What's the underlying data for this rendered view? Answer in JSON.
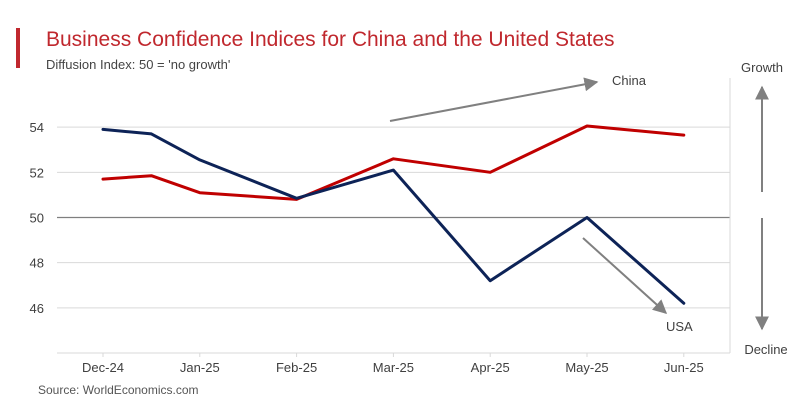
{
  "header": {
    "title": "Business Confidence Indices for China and the United States",
    "subtitle": "Diffusion Index: 50 = 'no growth'"
  },
  "footer": {
    "source": "Source: WorldEconomics.com"
  },
  "colors": {
    "title": "#c0282e",
    "accent_bar": "#c0282e",
    "china": "#c00000",
    "usa": "#0d2357",
    "annotation": "#808080",
    "grid": "#d9d9d9",
    "zero_line": "#7f7f7f"
  },
  "chart_data": {
    "type": "line",
    "title": "Business Confidence Indices for China and the United States",
    "subtitle": "Diffusion Index: 50 = 'no growth'",
    "categories": [
      "Dec-24",
      "Jan-25",
      "Feb-25",
      "Mar-25",
      "Apr-25",
      "May-25",
      "Jun-25"
    ],
    "series": [
      {
        "name": "China",
        "color": "#c00000",
        "x": [
          0,
          0.5,
          1,
          2,
          3,
          4,
          5,
          6
        ],
        "values": [
          51.7,
          51.85,
          51.1,
          50.8,
          52.6,
          52.0,
          54.05,
          53.65
        ]
      },
      {
        "name": "USA",
        "color": "#0d2357",
        "x": [
          0,
          0.5,
          1,
          2,
          3,
          4,
          5,
          6
        ],
        "values": [
          53.9,
          53.7,
          52.55,
          50.85,
          52.1,
          47.2,
          50.0,
          46.2
        ]
      }
    ],
    "ylim": [
      44,
      56
    ],
    "yticks": [
      46,
      48,
      50,
      52,
      54
    ],
    "reference_line": 50,
    "grid": true,
    "annotations": [
      {
        "text": "China",
        "direction": "up"
      },
      {
        "text": "USA",
        "direction": "down"
      },
      {
        "text": "Growth",
        "direction": "up"
      },
      {
        "text": "Decline",
        "direction": "down"
      }
    ],
    "source": "Source: WorldEconomics.com"
  }
}
